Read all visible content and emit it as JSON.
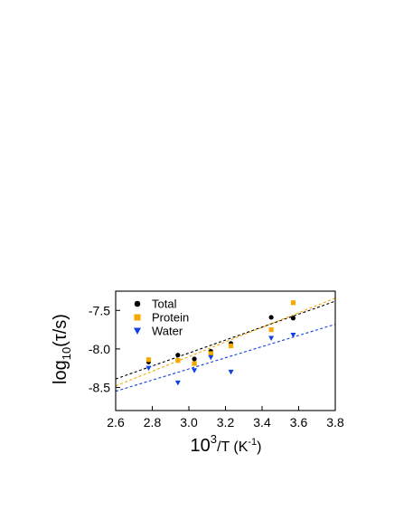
{
  "chart_data": {
    "type": "scatter",
    "title": "",
    "xlabel": {
      "base": "10",
      "sup": "3",
      "rest": "/T (K",
      "sup2": "-1",
      "close": ")"
    },
    "ylabel": {
      "pre": "log",
      "sub": "10",
      "post": "(τ/s)"
    },
    "xlim": [
      2.6,
      3.8
    ],
    "ylim": [
      -8.8,
      -7.25
    ],
    "xticks": [
      2.6,
      2.8,
      3.0,
      3.2,
      3.4,
      3.6,
      3.8
    ],
    "xtick_labels": [
      "2.6",
      "2.8",
      "3.0",
      "3.2",
      "3.4",
      "3.6",
      "3.8"
    ],
    "yticks": [
      -8.5,
      -8.0,
      -7.5
    ],
    "ytick_labels": [
      "-8.5",
      "-8.0",
      "-7.5"
    ],
    "grid": false,
    "legend_position": "top-left",
    "series": [
      {
        "name": "Total",
        "marker": "circle",
        "color": "#000000",
        "x": [
          2.78,
          2.94,
          3.03,
          3.12,
          3.23,
          3.45,
          3.57
        ],
        "y": [
          -8.17,
          -8.08,
          -8.13,
          -8.03,
          -7.93,
          -7.59,
          -7.6
        ],
        "fit": {
          "y_at_xmin": -8.39,
          "y_at_xmax": -7.38
        }
      },
      {
        "name": "Protein",
        "marker": "square",
        "color": "#f5a800",
        "x": [
          2.78,
          2.94,
          3.03,
          3.12,
          3.23,
          3.45,
          3.57
        ],
        "y": [
          -8.14,
          -8.15,
          -8.19,
          -8.06,
          -7.96,
          -7.75,
          -7.4
        ],
        "fit": {
          "y_at_xmin": -8.48,
          "y_at_xmax": -7.34
        }
      },
      {
        "name": "Water",
        "marker": "triangle-down",
        "color": "#1040e0",
        "x": [
          2.78,
          2.94,
          3.03,
          3.12,
          3.23,
          3.45,
          3.57
        ],
        "y": [
          -8.25,
          -8.44,
          -8.28,
          -8.11,
          -8.3,
          -7.86,
          -7.82
        ],
        "fit": {
          "y_at_xmin": -8.55,
          "y_at_xmax": -7.68
        }
      }
    ]
  }
}
